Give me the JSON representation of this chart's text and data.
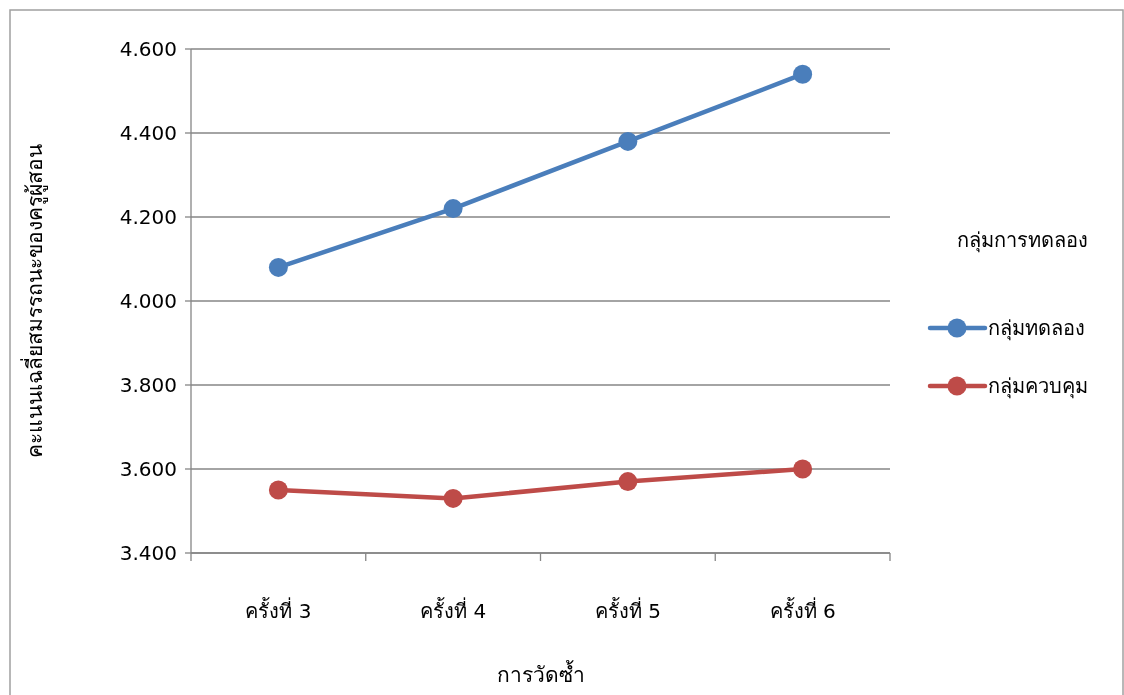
{
  "chart_data": {
    "type": "line",
    "xlabel": "การวัดซ้ำ",
    "ylabel": "คะแนนเฉลี่ยสมรรถนะของครูผู้สอน",
    "legend_title": "กลุ่มการทดลอง",
    "categories": [
      "ครั้งที่ 3",
      "ครั้งที่ 4",
      "ครั้งที่ 5",
      "ครั้งที่ 6"
    ],
    "series": [
      {
        "name": "กลุ่มทดลอง",
        "color": "#4a7ebb",
        "values": [
          4.08,
          4.22,
          4.38,
          4.54
        ]
      },
      {
        "name": "กลุ่มควบคุม",
        "color": "#be4b48",
        "values": [
          3.55,
          3.53,
          3.57,
          3.6
        ]
      }
    ],
    "ylim": [
      3.4,
      4.6
    ],
    "yticks": [
      {
        "value": 3.4,
        "label": "3.400"
      },
      {
        "value": 3.6,
        "label": "3.600"
      },
      {
        "value": 3.8,
        "label": "3.800"
      },
      {
        "value": 4.0,
        "label": "4.000"
      },
      {
        "value": 4.2,
        "label": "4.200"
      },
      {
        "value": 4.4,
        "label": "4.400"
      },
      {
        "value": 4.6,
        "label": "4.600"
      }
    ],
    "grid": "y",
    "legend": "right",
    "marker": "circle",
    "line_style": "solid"
  }
}
